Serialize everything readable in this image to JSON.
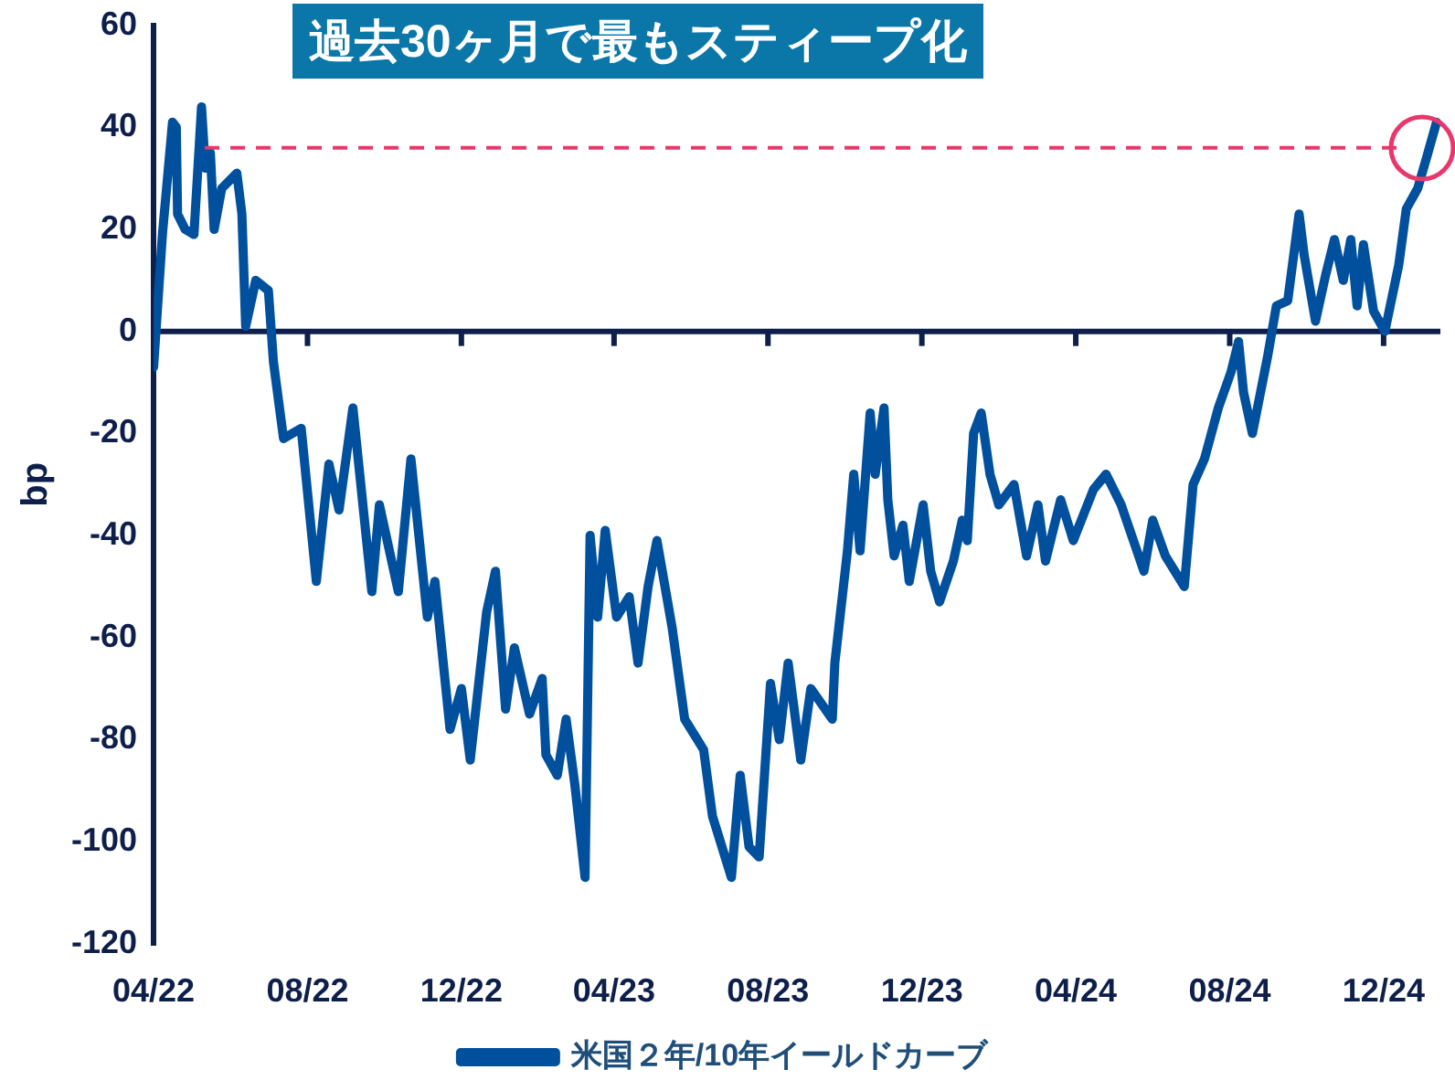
{
  "chart_data": {
    "type": "line",
    "title": "過去30ヶ月で最もスティープ化",
    "ylabel": "bp",
    "legend": "bottom",
    "xlim": [
      "2022-04-01",
      "2025-01-15"
    ],
    "xticks": [
      {
        "value": "2022-04-01",
        "label": "04/22"
      },
      {
        "value": "2022-08-01",
        "label": "08/22"
      },
      {
        "value": "2022-12-01",
        "label": "12/22"
      },
      {
        "value": "2023-04-01",
        "label": "04/23"
      },
      {
        "value": "2023-08-01",
        "label": "08/23"
      },
      {
        "value": "2023-12-01",
        "label": "12/23"
      },
      {
        "value": "2024-04-01",
        "label": "04/24"
      },
      {
        "value": "2024-08-01",
        "label": "08/24"
      },
      {
        "value": "2024-12-01",
        "label": "12/24"
      }
    ],
    "ylim": [
      -120,
      60
    ],
    "yticks": [
      -120,
      -100,
      -80,
      -60,
      -40,
      -20,
      0,
      20,
      40,
      60
    ],
    "ref_lines": [
      {
        "axis": "y",
        "value": 36,
        "color": "#e8386b",
        "line_style": "dashed"
      }
    ],
    "x": [
      "2022-04-01",
      "2022-04-08",
      "2022-04-16",
      "2022-04-19",
      "2022-04-20",
      "2022-04-26",
      "2022-05-03",
      "2022-05-09",
      "2022-05-12",
      "2022-05-16",
      "2022-05-19",
      "2022-05-25",
      "2022-06-06",
      "2022-06-10",
      "2022-06-13",
      "2022-06-21",
      "2022-07-01",
      "2022-07-05",
      "2022-07-13",
      "2022-07-27",
      "2022-08-08",
      "2022-08-18",
      "2022-08-26",
      "2022-09-06",
      "2022-09-21",
      "2022-09-27",
      "2022-10-12",
      "2022-10-22",
      "2022-11-04",
      "2022-11-10",
      "2022-11-22",
      "2022-12-01",
      "2022-12-08",
      "2022-12-21",
      "2022-12-28",
      "2023-01-05",
      "2023-01-12",
      "2023-01-24",
      "2023-02-03",
      "2023-02-06",
      "2023-02-15",
      "2023-02-22",
      "2023-03-01",
      "2023-03-09",
      "2023-03-13",
      "2023-03-19",
      "2023-03-25",
      "2023-04-03",
      "2023-04-13",
      "2023-04-20",
      "2023-04-28",
      "2023-05-05",
      "2023-05-17",
      "2023-05-27",
      "2023-06-11",
      "2023-06-18",
      "2023-07-03",
      "2023-07-10",
      "2023-07-17",
      "2023-07-25",
      "2023-08-03",
      "2023-08-10",
      "2023-08-17",
      "2023-08-27",
      "2023-09-04",
      "2023-09-21",
      "2023-09-23",
      "2023-10-03",
      "2023-10-08",
      "2023-10-13",
      "2023-10-21",
      "2023-10-25",
      "2023-11-01",
      "2023-11-04",
      "2023-11-09",
      "2023-11-16",
      "2023-11-21",
      "2023-12-02",
      "2023-12-08",
      "2023-12-15",
      "2023-12-26",
      "2024-01-02",
      "2024-01-06",
      "2024-01-11",
      "2024-01-17",
      "2024-01-24",
      "2024-01-31",
      "2024-02-12",
      "2024-02-22",
      "2024-03-02",
      "2024-03-08",
      "2024-03-20",
      "2024-03-30",
      "2024-04-15",
      "2024-04-25",
      "2024-05-07",
      "2024-05-25",
      "2024-06-01",
      "2024-06-11",
      "2024-06-26",
      "2024-07-03",
      "2024-07-12",
      "2024-07-23",
      "2024-08-02",
      "2024-08-08",
      "2024-08-12",
      "2024-08-19",
      "2024-08-31",
      "2024-09-07",
      "2024-09-16",
      "2024-09-25",
      "2024-09-29",
      "2024-10-08",
      "2024-10-16",
      "2024-10-23",
      "2024-10-30",
      "2024-11-05",
      "2024-11-10",
      "2024-11-15",
      "2024-11-23",
      "2024-12-02",
      "2024-12-13",
      "2024-12-19",
      "2024-12-28",
      "2025-01-04",
      "2025-01-12"
    ],
    "series": [
      {
        "name": "米国２年/10年イールドカーブ",
        "color": "#00509e",
        "values": [
          -7,
          19,
          41,
          40,
          23,
          20,
          19,
          44,
          32,
          35,
          20,
          28,
          31,
          23,
          1,
          10,
          8,
          -6,
          -21,
          -19,
          -49,
          -26,
          -35,
          -15,
          -51,
          -34,
          -51,
          -25,
          -56,
          -49,
          -78,
          -70,
          -84,
          -55,
          -47,
          -74,
          -62,
          -75,
          -68,
          -83,
          -87,
          -76,
          -89,
          -107,
          -40,
          -56,
          -39,
          -56,
          -52,
          -65,
          -50,
          -41,
          -58,
          -76,
          -82,
          -95,
          -107,
          -87,
          -101,
          -103,
          -69,
          -80,
          -65,
          -84,
          -70,
          -76,
          -65,
          -43,
          -28,
          -43,
          -16,
          -28,
          -15,
          -33,
          -44,
          -38,
          -49,
          -34,
          -47,
          -53,
          -45,
          -37,
          -41,
          -20,
          -16,
          -28,
          -34,
          -30,
          -44,
          -34,
          -45,
          -33,
          -41,
          -31,
          -28,
          -34,
          -47,
          -37,
          -44,
          -50,
          -30,
          -25,
          -15,
          -8,
          -2,
          -12,
          -20,
          -5,
          5,
          6,
          23,
          15,
          2,
          11,
          18,
          10,
          18,
          5,
          17,
          4,
          0,
          13,
          24,
          28,
          34,
          41
        ]
      }
    ]
  }
}
